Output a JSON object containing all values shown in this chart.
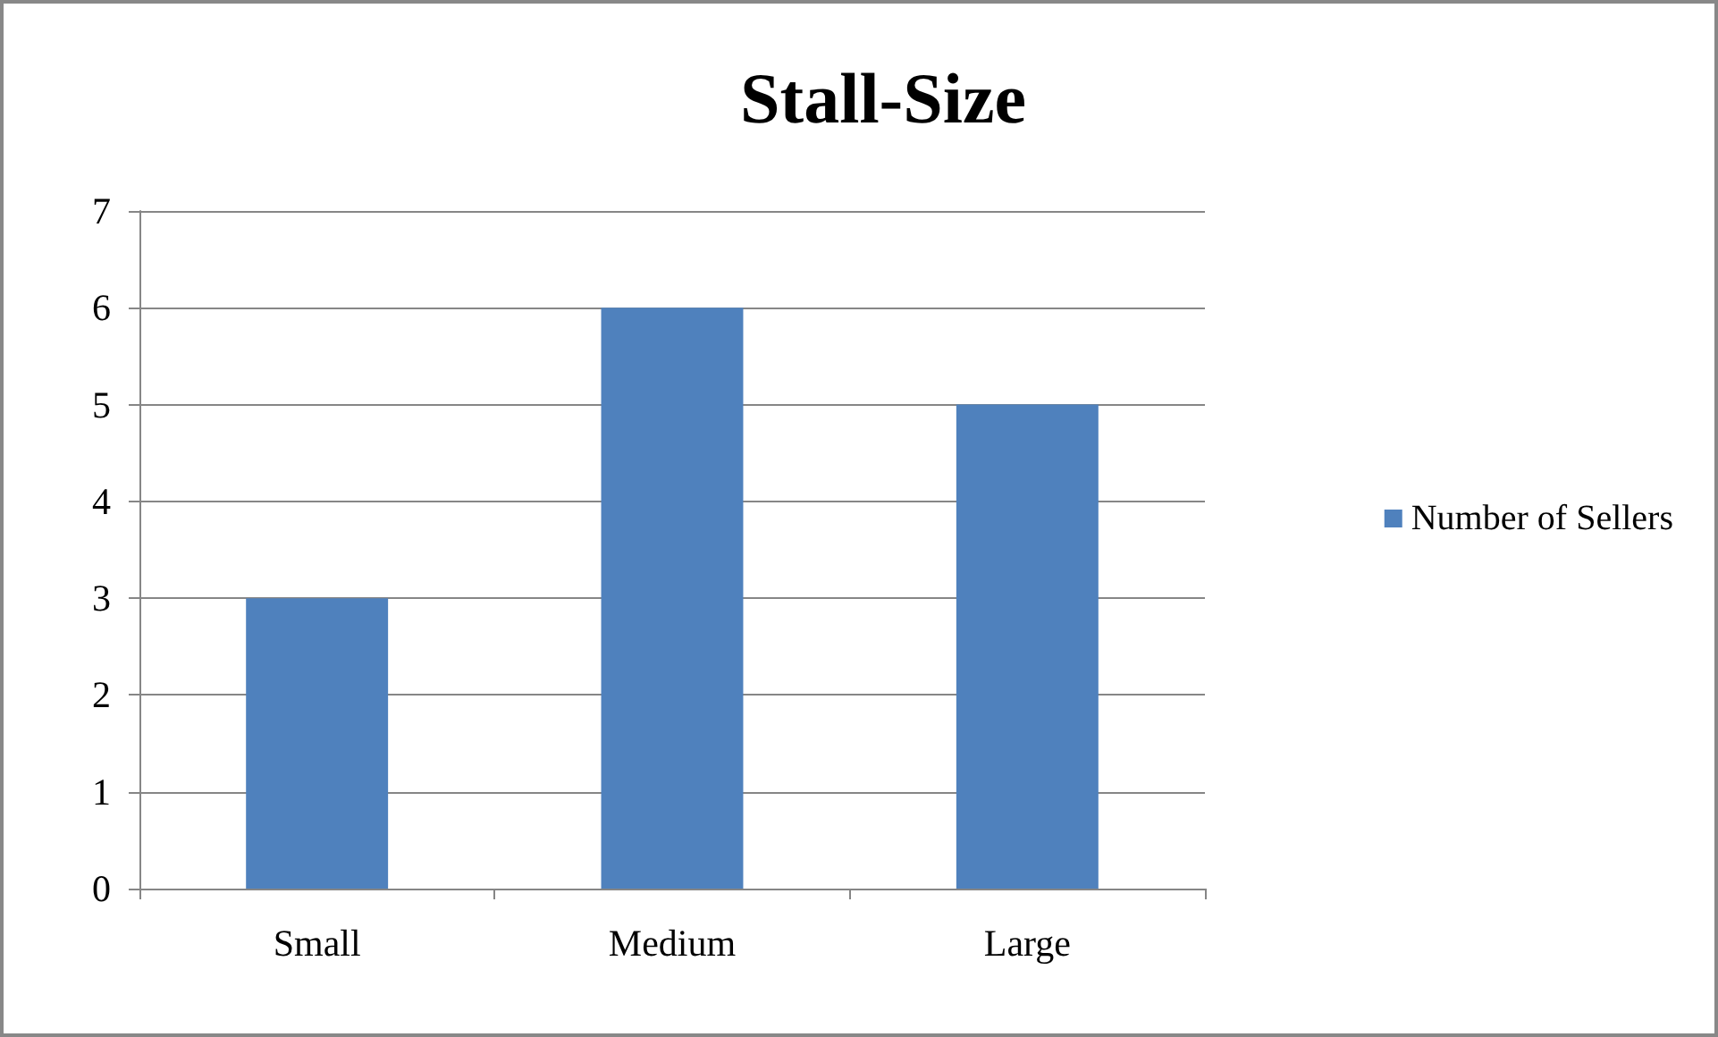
{
  "chart_data": {
    "type": "bar",
    "title": "Stall-Size",
    "categories": [
      "Small",
      "Medium",
      "Large"
    ],
    "series": [
      {
        "name": "Number of Sellers",
        "color": "#4f81bd",
        "values": [
          3,
          6,
          5
        ]
      }
    ],
    "ylim": [
      0,
      7
    ],
    "yticks": [
      0,
      1,
      2,
      3,
      4,
      5,
      6,
      7
    ],
    "grid": "y",
    "legend": "right"
  }
}
